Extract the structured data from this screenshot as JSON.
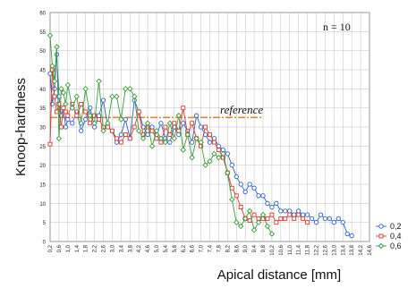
{
  "chart_data": {
    "type": "line",
    "xlabel": "Apical distance [mm]",
    "ylabel": "Knoop-hardness",
    "xlim": [
      0.2,
      14.6
    ],
    "ylim": [
      0,
      60
    ],
    "x_ticks": [
      "0,2",
      "0,6",
      "1,0",
      "1,4",
      "1,8",
      "2,2",
      "2,6",
      "3,0",
      "3,4",
      "3,8",
      "4,2",
      "4,6",
      "5,0",
      "5,4",
      "5,8",
      "6,2",
      "6,6",
      "7,0",
      "7,4",
      "7,8",
      "8,2",
      "8,6",
      "9,0",
      "9,4",
      "9,8",
      "10,2",
      "10,6",
      "11,0",
      "11,4",
      "11,8",
      "12,2",
      "12,6",
      "13,0",
      "13,4",
      "13,8",
      "14,2",
      "14,6"
    ],
    "y_ticks": [
      "0",
      "5",
      "10",
      "15",
      "20",
      "25",
      "30",
      "35",
      "40",
      "45",
      "50",
      "55",
      "60"
    ],
    "grid": true,
    "annotation": "n = 10",
    "reference": {
      "label": "reference",
      "y": 32.5,
      "x_start": 0.2,
      "x_end": 9.8,
      "color": "#d9822b"
    },
    "legend_position": "bottom-right",
    "series": [
      {
        "name": "0,2",
        "color": "#2b5fc4",
        "marker": "circle",
        "x": [
          0.2,
          0.3,
          0.4,
          0.5,
          0.6,
          0.7,
          0.8,
          0.9,
          1.0,
          1.2,
          1.4,
          1.6,
          1.8,
          2.0,
          2.2,
          2.4,
          2.6,
          2.8,
          3.0,
          3.2,
          3.4,
          3.6,
          3.8,
          4.0,
          4.2,
          4.4,
          4.6,
          4.8,
          5.0,
          5.2,
          5.4,
          5.6,
          5.8,
          6.0,
          6.2,
          6.4,
          6.6,
          6.8,
          7.0,
          7.2,
          7.4,
          7.6,
          7.8,
          8.0,
          8.2,
          8.4,
          8.6,
          8.8,
          9.0,
          9.2,
          9.4,
          9.6,
          9.8,
          10.0,
          10.2,
          10.4,
          10.6,
          10.8,
          11.0,
          11.2,
          11.4,
          11.6,
          11.8,
          12.0,
          12.2,
          12.4,
          12.6,
          12.8,
          13.0,
          13.2,
          13.4,
          13.6,
          13.8
        ],
        "y": [
          44,
          36,
          40,
          49,
          38,
          33,
          35,
          30,
          32,
          31,
          34,
          29,
          32,
          35,
          30,
          33,
          37,
          30,
          29,
          26,
          28,
          32,
          27,
          37,
          34,
          30,
          28,
          30,
          28,
          31,
          27,
          26,
          30,
          28,
          31,
          29,
          26,
          33,
          30,
          28,
          26,
          27,
          25,
          24,
          23,
          20,
          17,
          15,
          13,
          15,
          14,
          12,
          12,
          10,
          9,
          10,
          8,
          8,
          8,
          7,
          8,
          7,
          7,
          6,
          5,
          7,
          6,
          6,
          5,
          6,
          5,
          2,
          1.5
        ]
      },
      {
        "name": "0,4",
        "color": "#d63a2e",
        "marker": "square",
        "x": [
          0.2,
          0.3,
          0.4,
          0.5,
          0.6,
          0.7,
          0.8,
          0.9,
          1.0,
          1.2,
          1.4,
          1.6,
          1.8,
          2.0,
          2.2,
          2.4,
          2.6,
          2.8,
          3.0,
          3.2,
          3.4,
          3.6,
          3.8,
          4.0,
          4.2,
          4.4,
          4.6,
          4.8,
          5.0,
          5.2,
          5.4,
          5.6,
          5.8,
          6.0,
          6.2,
          6.4,
          6.6,
          6.8,
          7.0,
          7.2,
          7.4,
          7.6,
          7.8,
          8.0,
          8.2,
          8.4,
          8.6,
          8.8,
          9.0,
          9.2,
          9.4,
          9.6,
          9.8,
          10.0,
          10.2,
          10.4,
          10.6,
          10.8,
          11.0,
          11.2,
          11.4,
          11.6,
          11.8
        ],
        "y": [
          25.5,
          45,
          38,
          34,
          36,
          30,
          35,
          34,
          33,
          36,
          33,
          36,
          34,
          31,
          33,
          32,
          30,
          30,
          29,
          27,
          26,
          28,
          27,
          30,
          34,
          28,
          30,
          29,
          27,
          26,
          30,
          28,
          31,
          29,
          35,
          28,
          31,
          27,
          25,
          30,
          28,
          26,
          24,
          22,
          18,
          14,
          12,
          9,
          6,
          5.5,
          7,
          6,
          6,
          6,
          7,
          5,
          6,
          6,
          7,
          6,
          7,
          6,
          5
        ]
      },
      {
        "name": "0,6",
        "color": "#3a9a3a",
        "marker": "diamond",
        "x": [
          0.2,
          0.3,
          0.4,
          0.5,
          0.6,
          0.7,
          0.8,
          0.9,
          1.0,
          1.2,
          1.4,
          1.6,
          1.8,
          2.0,
          2.2,
          2.4,
          2.6,
          2.8,
          3.0,
          3.2,
          3.4,
          3.6,
          3.8,
          4.0,
          4.2,
          4.4,
          4.6,
          4.8,
          5.0,
          5.2,
          5.4,
          5.6,
          5.8,
          6.0,
          6.2,
          6.4,
          6.6,
          6.8,
          7.0,
          7.2,
          7.4,
          7.6,
          7.8,
          8.0,
          8.2,
          8.4,
          8.6,
          8.8,
          9.0,
          9.2,
          9.4,
          9.6,
          9.8,
          10.0,
          10.2
        ],
        "y": [
          54,
          46,
          42,
          51,
          27,
          40,
          39,
          36,
          41,
          35,
          38,
          31,
          40,
          33,
          31,
          42,
          29,
          31,
          38,
          38,
          32,
          40,
          40,
          38,
          29,
          27,
          31,
          25,
          29,
          27,
          26,
          31,
          27,
          33,
          24,
          28,
          22,
          27,
          26,
          20,
          21,
          23,
          22,
          23,
          18,
          11,
          5,
          4,
          6,
          8,
          3,
          5,
          7,
          4,
          2
        ]
      }
    ]
  }
}
